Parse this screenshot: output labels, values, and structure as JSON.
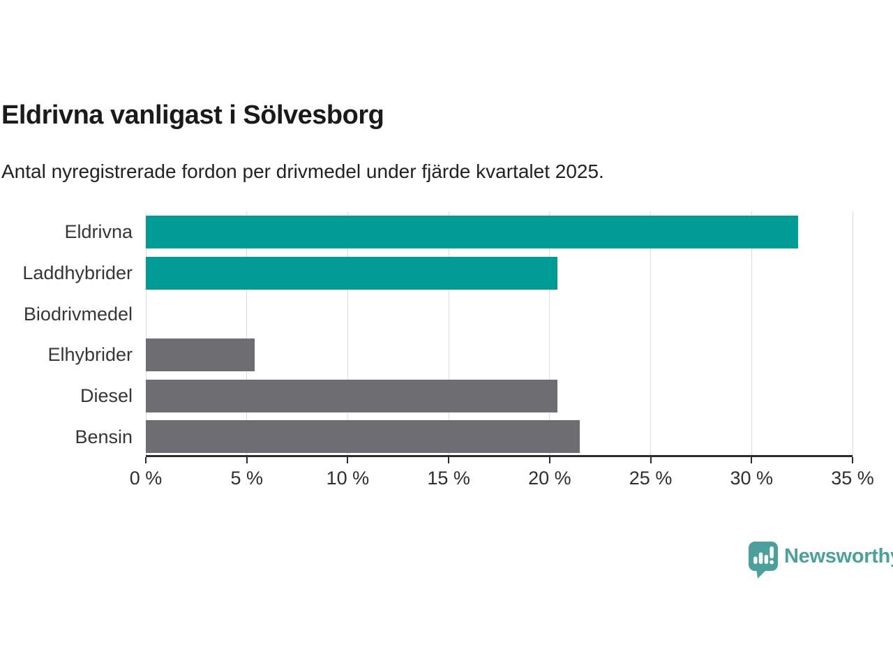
{
  "title": "Eldrivna vanligast i Sölvesborg",
  "subtitle": "Antal nyregistrerade fordon per drivmedel under fjärde kvartalet 2025.",
  "colors": {
    "accent": "#009C94",
    "neutral": "#6E6E72",
    "grid": "#DBDBDB",
    "axis": "#2B2B2B",
    "text": "#363636",
    "title_text": "#1A1A1A",
    "logo": "#4BA09B"
  },
  "chart_data": {
    "type": "bar",
    "orientation": "horizontal",
    "title": "Eldrivna vanligast i Sölvesborg",
    "subtitle": "Antal nyregistrerade fordon per drivmedel under fjärde kvartalet 2025.",
    "categories": [
      "Eldrivna",
      "Laddhybrider",
      "Biodrivmedel",
      "Elhybrider",
      "Diesel",
      "Bensin"
    ],
    "values": [
      32.3,
      20.4,
      0,
      5.4,
      20.4,
      21.5
    ],
    "highlighted": [
      true,
      true,
      false,
      false,
      false,
      false
    ],
    "unit": "%",
    "xlim": [
      0,
      35
    ],
    "xticks": [
      0,
      5,
      10,
      15,
      20,
      25,
      30,
      35
    ],
    "xtick_labels": [
      "0 %",
      "5 %",
      "10 %",
      "15 %",
      "20 %",
      "25 %",
      "30 %",
      "35 %"
    ],
    "grid": true,
    "legend": false
  },
  "footer": {
    "brand": "Newsworthy"
  }
}
